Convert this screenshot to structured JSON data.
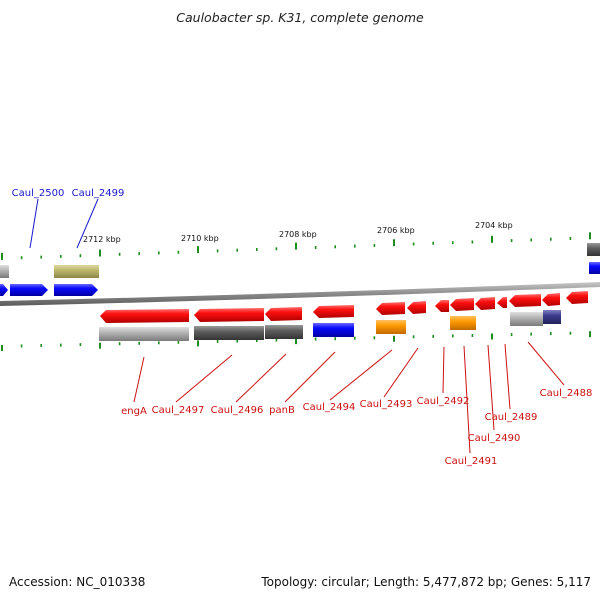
{
  "title": "Caulobacter sp. K31, complete genome",
  "footer": {
    "accession": "Accession: NC_010338",
    "summary": "Topology: circular; Length: 5,477,872 bp; Genes: 5,117"
  },
  "colors": {
    "backbone": "#808080",
    "tick": "#1e8c1e",
    "forward_label": "#1a1acc",
    "reverse_label": "#cc1111",
    "red_gene": "#ff0000",
    "blue_gene": "#0000ff",
    "orange_gene": "#ff9900",
    "olive_gene": "#bdb76b",
    "grey_gene": "#9a9a9a",
    "dark_grey_gene": "#5a5a5a",
    "purple_gene": "#3b3b8f"
  },
  "ruler": [
    "2712 kbp",
    "2710 kbp",
    "2708 kbp",
    "2706 kbp",
    "2704 kbp"
  ],
  "forward_labels": [
    "Caul_2500",
    "Caul_2499"
  ],
  "reverse_labels": [
    "engA",
    "Caul_2497",
    "Caul_2496",
    "panB",
    "Caul_2494",
    "Caul_2493",
    "Caul_2492",
    "Caul_2491",
    "Caul_2490",
    "Caul_2489",
    "Caul_2488"
  ]
}
